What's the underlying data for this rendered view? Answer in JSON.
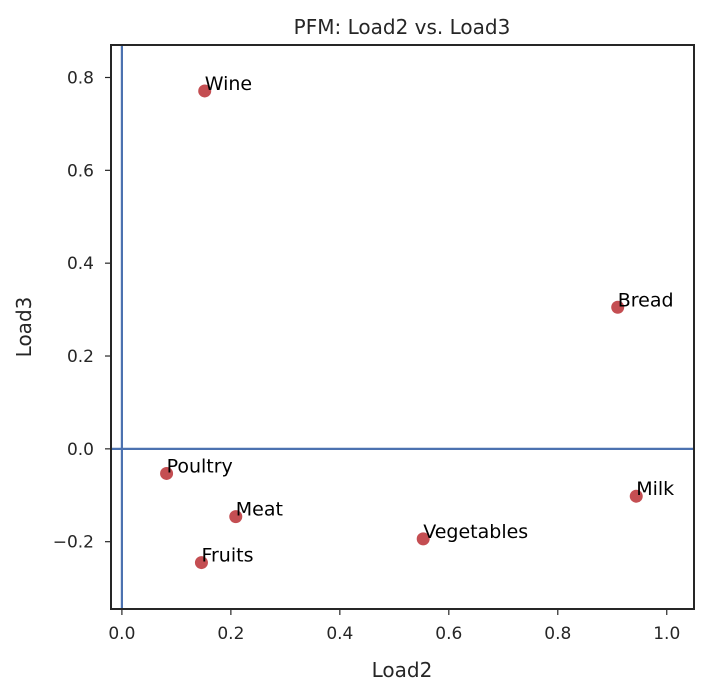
{
  "chart_data": {
    "type": "scatter",
    "title": "PFM: Load2 vs. Load3",
    "xlabel": "Load2",
    "ylabel": "Load3",
    "xlim": [
      -0.02,
      1.05
    ],
    "ylim": [
      -0.345,
      0.87
    ],
    "xticks": [
      0.0,
      0.2,
      0.4,
      0.6,
      0.8,
      1.0
    ],
    "xtick_labels": [
      "0.0",
      "0.2",
      "0.4",
      "0.6",
      "0.8",
      "1.0"
    ],
    "yticks": [
      -0.2,
      0.0,
      0.2,
      0.4,
      0.6,
      0.8
    ],
    "ytick_labels": [
      "−0.2",
      "0.0",
      "0.2",
      "0.4",
      "0.6",
      "0.8"
    ],
    "grid": false,
    "reference_lines": {
      "x": 0.0,
      "y": 0.0,
      "color": "#4c72b0"
    },
    "point_color": "#c44e52",
    "points": [
      {
        "label": "Wine",
        "x": 0.152,
        "y": 0.771
      },
      {
        "label": "Bread",
        "x": 0.91,
        "y": 0.305
      },
      {
        "label": "Poultry",
        "x": 0.082,
        "y": -0.053
      },
      {
        "label": "Milk",
        "x": 0.944,
        "y": -0.102
      },
      {
        "label": "Meat",
        "x": 0.209,
        "y": -0.146
      },
      {
        "label": "Vegetables",
        "x": 0.553,
        "y": -0.194
      },
      {
        "label": "Fruits",
        "x": 0.146,
        "y": -0.245
      }
    ]
  }
}
